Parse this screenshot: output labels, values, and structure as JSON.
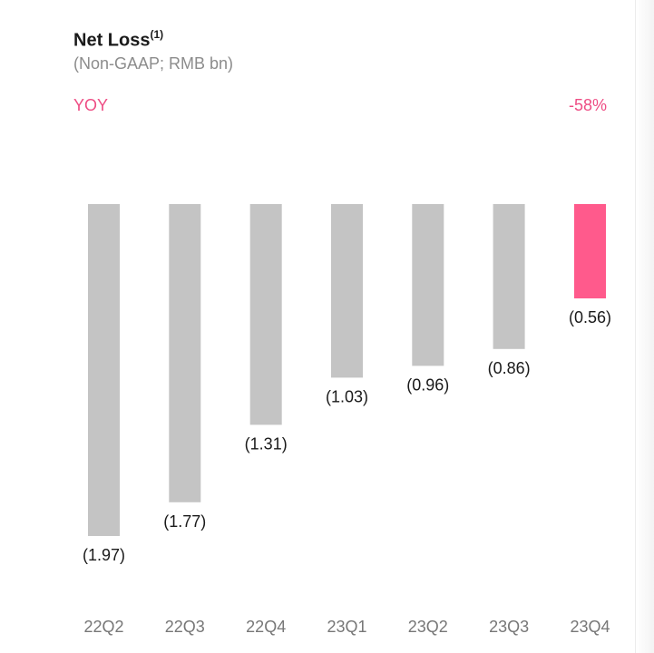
{
  "header": {
    "title": "Net Loss",
    "title_superscript": "(1)",
    "subtitle": "(Non-GAAP; RMB bn)"
  },
  "yoy": {
    "label": "YOY",
    "value": "-58%"
  },
  "colors": {
    "bar_default": "#c4c4c4",
    "bar_highlight": "#ff5a8c",
    "accent_text": "#ee4d84"
  },
  "chart_data": {
    "type": "bar",
    "orientation": "vertical, bars hanging downward (negative values)",
    "categories": [
      "22Q2",
      "22Q3",
      "22Q4",
      "23Q1",
      "23Q2",
      "23Q3",
      "23Q4"
    ],
    "values": [
      -1.97,
      -1.77,
      -1.31,
      -1.03,
      -0.96,
      -0.86,
      -0.56
    ],
    "value_labels": [
      "(1.97)",
      "(1.77)",
      "(1.31)",
      "(1.03)",
      "(0.96)",
      "(0.86)",
      "(0.56)"
    ],
    "highlight_index": 6,
    "title": "Net Loss",
    "ylim": [
      -1.97,
      0
    ],
    "grid": false
  }
}
